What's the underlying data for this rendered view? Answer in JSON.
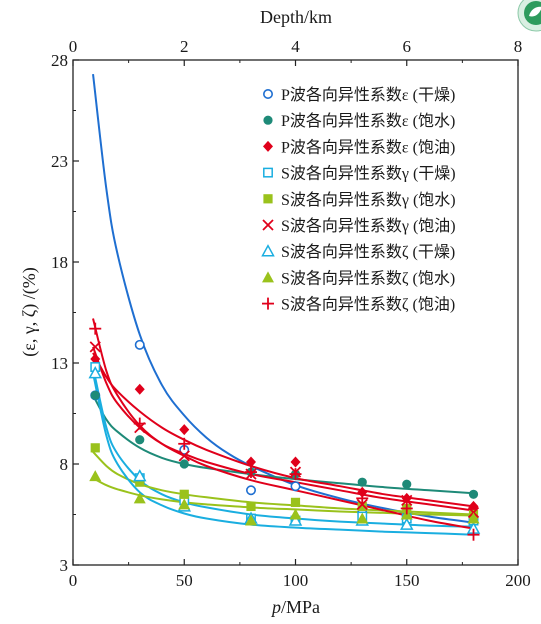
{
  "chart_data": {
    "type": "scatter",
    "title": "",
    "xlabel": "p/MPa",
    "xlabel_italic": "p",
    "xlabel_unit": "/MPa",
    "ylabel": "(ε, γ, ζ) /(%)",
    "top_xlabel": "Depth/km",
    "xlim": [
      0,
      200
    ],
    "ylim": [
      3,
      28
    ],
    "top_xlim": [
      0,
      8
    ],
    "x_ticks": [
      "0",
      "50",
      "100",
      "150",
      "200"
    ],
    "y_ticks": [
      "3",
      "8",
      "13",
      "18",
      "23",
      "28"
    ],
    "top_ticks": [
      "0",
      "2",
      "4",
      "6",
      "8"
    ],
    "legend_position": "top-right",
    "grid": false,
    "series": [
      {
        "name": "P波各向异性系数ε (干燥)",
        "marker": "circle-open",
        "color": "#1f6fd1",
        "points": [
          [
            10,
            11.4
          ],
          [
            30,
            13.9
          ],
          [
            50,
            8.7
          ],
          [
            80,
            6.7
          ],
          [
            100,
            6.9
          ],
          [
            130,
            5.6
          ],
          [
            150,
            5.4
          ],
          [
            180,
            5.3
          ]
        ],
        "fit": [
          [
            9,
            27.3
          ],
          [
            15,
            21.6
          ],
          [
            20,
            18.4
          ],
          [
            30,
            14.4
          ],
          [
            40,
            11.9
          ],
          [
            50,
            10.4
          ],
          [
            60,
            9.3
          ],
          [
            70,
            8.5
          ],
          [
            80,
            7.9
          ],
          [
            100,
            6.95
          ],
          [
            120,
            6.3
          ],
          [
            140,
            5.8
          ],
          [
            160,
            5.4
          ],
          [
            180,
            5.1
          ]
        ]
      },
      {
        "name": "P波各向异性系数ε (饱水)",
        "marker": "circle-filled",
        "color": "#1e8a78",
        "points": [
          [
            10,
            11.4
          ],
          [
            30,
            9.2
          ],
          [
            50,
            8
          ],
          [
            80,
            7.6
          ],
          [
            100,
            7.5
          ],
          [
            130,
            7.1
          ],
          [
            150,
            7
          ],
          [
            180,
            6.5
          ]
        ],
        "fit": [
          [
            9,
            11.4
          ],
          [
            15,
            10.2
          ],
          [
            20,
            9.6
          ],
          [
            30,
            8.8
          ],
          [
            40,
            8.3
          ],
          [
            50,
            8
          ],
          [
            60,
            7.8
          ],
          [
            80,
            7.5
          ],
          [
            100,
            7.25
          ],
          [
            120,
            7.05
          ],
          [
            140,
            6.85
          ],
          [
            160,
            6.7
          ],
          [
            180,
            6.55
          ]
        ]
      },
      {
        "name": "P波各向异性系数ε (饱油)",
        "marker": "diamond-filled",
        "color": "#e0001b",
        "points": [
          [
            10,
            13.2
          ],
          [
            30,
            11.7
          ],
          [
            50,
            9.7
          ],
          [
            80,
            8.1
          ],
          [
            100,
            8.1
          ],
          [
            130,
            6.6
          ],
          [
            150,
            6.3
          ],
          [
            180,
            5.9
          ]
        ],
        "fit": [
          [
            9,
            13.5
          ],
          [
            15,
            12.3
          ],
          [
            20,
            11.6
          ],
          [
            30,
            10.6
          ],
          [
            40,
            9.8
          ],
          [
            50,
            9.2
          ],
          [
            60,
            8.7
          ],
          [
            80,
            7.9
          ],
          [
            100,
            7.3
          ],
          [
            120,
            6.9
          ],
          [
            140,
            6.5
          ],
          [
            160,
            6.2
          ],
          [
            180,
            5.9
          ]
        ]
      },
      {
        "name": "S波各向异性系数γ (干燥)",
        "marker": "square-open",
        "color": "#1aaee0",
        "points": [
          [
            10,
            12.8
          ],
          [
            30,
            7.3
          ],
          [
            50,
            6.2
          ],
          [
            80,
            5.3
          ],
          [
            100,
            5.2
          ],
          [
            130,
            5.4
          ],
          [
            150,
            5.3
          ],
          [
            180,
            5.2
          ]
        ],
        "fit": [
          [
            9,
            12.8
          ],
          [
            15,
            9.8
          ],
          [
            20,
            8.5
          ],
          [
            30,
            7.2
          ],
          [
            40,
            6.5
          ],
          [
            50,
            6.1
          ],
          [
            60,
            5.85
          ],
          [
            80,
            5.5
          ],
          [
            100,
            5.3
          ],
          [
            120,
            5.15
          ],
          [
            140,
            5.05
          ],
          [
            160,
            4.95
          ],
          [
            180,
            4.9
          ]
        ]
      },
      {
        "name": "S波各向异性系数γ (饱水)",
        "marker": "square-filled",
        "color": "#9ac21c",
        "points": [
          [
            10,
            8.8
          ],
          [
            30,
            7.1
          ],
          [
            50,
            6.5
          ],
          [
            80,
            5.9
          ],
          [
            100,
            6.1
          ],
          [
            130,
            5.9
          ],
          [
            150,
            5.8
          ],
          [
            180,
            5.5
          ]
        ],
        "fit": [
          [
            9,
            8.6
          ],
          [
            15,
            7.9
          ],
          [
            20,
            7.5
          ],
          [
            30,
            7
          ],
          [
            40,
            6.7
          ],
          [
            50,
            6.5
          ],
          [
            60,
            6.35
          ],
          [
            80,
            6.1
          ],
          [
            100,
            5.95
          ],
          [
            120,
            5.8
          ],
          [
            140,
            5.7
          ],
          [
            160,
            5.6
          ],
          [
            180,
            5.5
          ]
        ]
      },
      {
        "name": "S波各向异性系数γ (饱油)",
        "marker": "x",
        "color": "#e0001b",
        "points": [
          [
            10,
            13.8
          ],
          [
            30,
            9.8
          ],
          [
            50,
            8.4
          ],
          [
            80,
            7.5
          ],
          [
            100,
            7.6
          ],
          [
            130,
            6
          ],
          [
            150,
            6.2
          ],
          [
            180,
            5.6
          ]
        ],
        "fit": [
          [
            9,
            13.8
          ],
          [
            15,
            12
          ],
          [
            20,
            11
          ],
          [
            30,
            9.8
          ],
          [
            40,
            9
          ],
          [
            50,
            8.5
          ],
          [
            60,
            8.1
          ],
          [
            80,
            7.5
          ],
          [
            100,
            7.1
          ],
          [
            120,
            6.7
          ],
          [
            140,
            6.3
          ],
          [
            160,
            6
          ],
          [
            180,
            5.7
          ]
        ]
      },
      {
        "name": "S波各向异性系数ζ (干燥)",
        "marker": "triangle-open",
        "color": "#1aaee0",
        "points": [
          [
            10,
            12.5
          ],
          [
            30,
            7.4
          ],
          [
            50,
            5.9
          ],
          [
            80,
            5.3
          ],
          [
            100,
            5.2
          ],
          [
            130,
            5.2
          ],
          [
            150,
            5
          ],
          [
            180,
            4.8
          ]
        ],
        "fit": [
          [
            9,
            12.5
          ],
          [
            15,
            9.4
          ],
          [
            20,
            8
          ],
          [
            30,
            6.6
          ],
          [
            40,
            5.95
          ],
          [
            50,
            5.55
          ],
          [
            60,
            5.3
          ],
          [
            80,
            5
          ],
          [
            100,
            4.85
          ],
          [
            120,
            4.75
          ],
          [
            140,
            4.65
          ],
          [
            160,
            4.58
          ],
          [
            180,
            4.5
          ]
        ]
      },
      {
        "name": "S波各向异性系数ζ (饱水)",
        "marker": "triangle-filled",
        "color": "#9ac21c",
        "points": [
          [
            10,
            7.4
          ],
          [
            30,
            6.3
          ],
          [
            50,
            6
          ],
          [
            80,
            5.2
          ],
          [
            100,
            5.5
          ],
          [
            130,
            5.3
          ],
          [
            150,
            5.5
          ],
          [
            180,
            5.3
          ]
        ],
        "fit": [
          [
            9,
            7.3
          ],
          [
            15,
            6.95
          ],
          [
            20,
            6.75
          ],
          [
            30,
            6.45
          ],
          [
            40,
            6.25
          ],
          [
            50,
            6.1
          ],
          [
            60,
            6
          ],
          [
            80,
            5.85
          ],
          [
            100,
            5.75
          ],
          [
            120,
            5.65
          ],
          [
            140,
            5.58
          ],
          [
            160,
            5.5
          ],
          [
            180,
            5.45
          ]
        ]
      },
      {
        "name": "S波各向异性系数ζ (饱油)",
        "marker": "plus",
        "color": "#e0001b",
        "points": [
          [
            10,
            14.7
          ],
          [
            30,
            10
          ],
          [
            50,
            9
          ],
          [
            80,
            7.6
          ],
          [
            100,
            7.5
          ],
          [
            130,
            6.3
          ],
          [
            150,
            5.8
          ],
          [
            180,
            4.5
          ]
        ],
        "fit": [
          [
            9,
            15.2
          ],
          [
            15,
            12.6
          ],
          [
            20,
            11.4
          ],
          [
            30,
            9.9
          ],
          [
            40,
            9
          ],
          [
            50,
            8.4
          ],
          [
            60,
            7.9
          ],
          [
            80,
            7.2
          ],
          [
            100,
            6.7
          ],
          [
            120,
            6.2
          ],
          [
            140,
            5.7
          ],
          [
            160,
            5.2
          ],
          [
            180,
            4.8
          ]
        ]
      }
    ]
  }
}
